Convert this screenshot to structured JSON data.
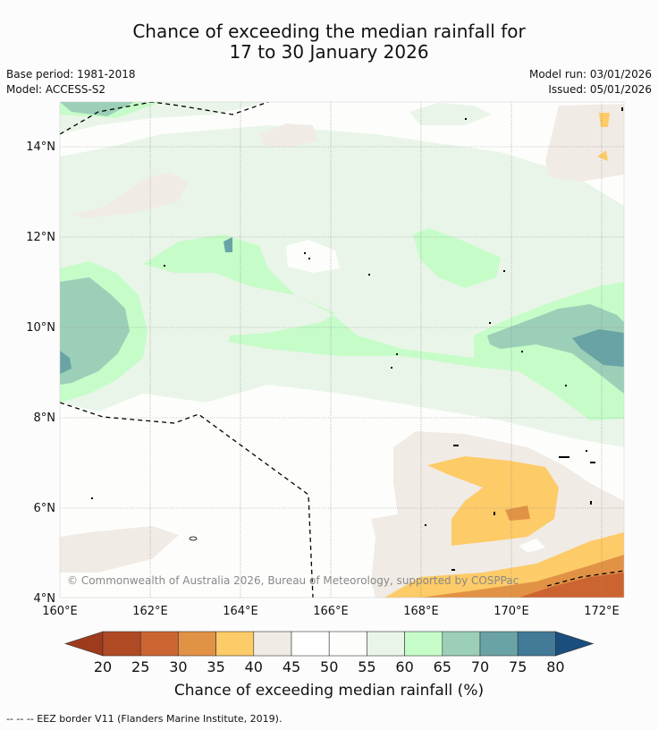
{
  "title": {
    "line1": "Chance of exceeding the median rainfall for",
    "line2": "17 to 30 January 2026"
  },
  "meta": {
    "base_period": "Base period: 1981-2018",
    "model": "Model: ACCESS-S2",
    "model_run": "Model run: 03/01/2026",
    "issued": "Issued: 05/01/2026"
  },
  "map": {
    "lon_ticks": [
      "160°E",
      "162°E",
      "164°E",
      "166°E",
      "168°E",
      "170°E",
      "172°E"
    ],
    "lat_ticks": [
      "14°N",
      "12°N",
      "10°N",
      "8°N",
      "6°N",
      "4°N"
    ],
    "copyright": "© Commonwealth of Australia 2026, Bureau of Meteorology, supported by COSPPac"
  },
  "colorbar": {
    "labels": [
      "20",
      "25",
      "30",
      "35",
      "40",
      "45",
      "50",
      "55",
      "60",
      "65",
      "70",
      "75",
      "80"
    ],
    "colors": [
      "#9e3a1d",
      "#b04a25",
      "#cc6431",
      "#e29245",
      "#fdcb67",
      "#f1ebe6",
      "#ffffff",
      "#fdfefc",
      "#e9f5e8",
      "#c6fcc8",
      "#9ccfb8",
      "#6aa3a6",
      "#427a98",
      "#1a4e7c"
    ],
    "title": "Chance of exceeding median rainfall (%)"
  },
  "footer": "--  --  -- EEZ border V11 (Flanders Marine Institute, 2019)."
}
